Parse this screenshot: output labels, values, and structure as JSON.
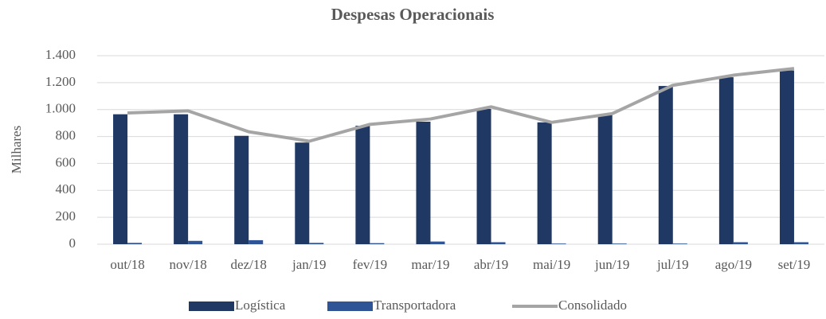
{
  "chart_data": {
    "type": "bar",
    "title": "Despesas Operacionais",
    "y_label": "Milhares",
    "categories": [
      "out/18",
      "nov/18",
      "dez/18",
      "jan/19",
      "fev/19",
      "mar/19",
      "abr/19",
      "mai/19",
      "jun/19",
      "jul/19",
      "ago/19",
      "set/19"
    ],
    "series": [
      {
        "name": "Logística",
        "type": "bar",
        "color": "#1f3864",
        "values": [
          965,
          965,
          805,
          755,
          880,
          910,
          1005,
          905,
          965,
          1175,
          1240,
          1290
        ]
      },
      {
        "name": "Transportadora",
        "type": "bar",
        "color": "#2f5597",
        "values": [
          10,
          25,
          30,
          10,
          8,
          20,
          15,
          5,
          5,
          5,
          15,
          15
        ]
      },
      {
        "name": "Consolidado",
        "type": "line",
        "color": "#a5a5a5",
        "values": [
          975,
          990,
          835,
          765,
          890,
          930,
          1020,
          905,
          970,
          1180,
          1255,
          1305
        ]
      }
    ],
    "ylim": [
      0,
      1400
    ],
    "yticks": [
      0,
      200,
      400,
      600,
      800,
      {
        "value": 1000,
        "label": "1.000"
      },
      {
        "value": 1200,
        "label": "1.200"
      },
      {
        "value": 1400,
        "label": "1.400"
      }
    ],
    "grid": true,
    "legend": "bottom"
  }
}
